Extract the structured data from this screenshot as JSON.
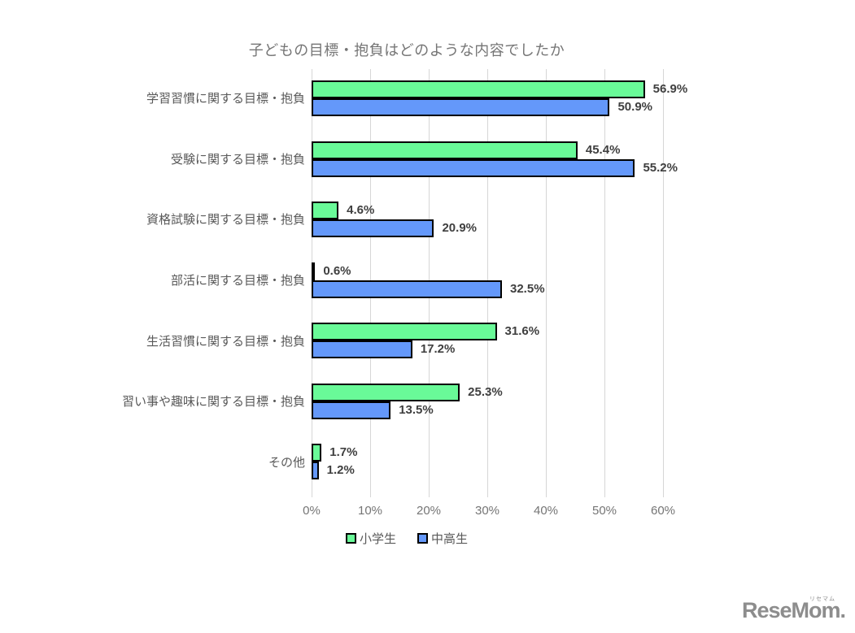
{
  "chart_data": {
    "type": "bar",
    "orientation": "horizontal",
    "title": "子どもの目標・抱負はどのような内容でしたか",
    "categories": [
      "学習習慣に関する目標・抱負",
      "受験に関する目標・抱負",
      "資格試験に関する目標・抱負",
      "部活に関する目標・抱負",
      "生活習慣に関する目標・抱負",
      "習い事や趣味に関する目標・抱負",
      "その他"
    ],
    "series": [
      {
        "name": "小学生",
        "color": "#69fa98",
        "values": [
          56.9,
          45.4,
          4.6,
          0.6,
          31.6,
          25.3,
          1.7
        ]
      },
      {
        "name": "中高生",
        "color": "#6498fa",
        "values": [
          50.9,
          55.2,
          20.9,
          32.5,
          17.2,
          13.5,
          1.2
        ]
      }
    ],
    "value_suffix": "%",
    "xlabel": "",
    "ylabel": "",
    "xlim": [
      0,
      60
    ],
    "xticks": [
      "0%",
      "10%",
      "20%",
      "30%",
      "40%",
      "50%",
      "60%"
    ],
    "grid": true,
    "legend_position": "bottom",
    "colors": {
      "bar_border": "#000000",
      "grid": "#d6d6d6",
      "title_text": "#757575",
      "category_text": "#595959",
      "value_text": "#3f3f3f",
      "tick_text": "#757575"
    }
  },
  "logo": {
    "text": "ReseMom.",
    "ruby": "リセマム"
  }
}
